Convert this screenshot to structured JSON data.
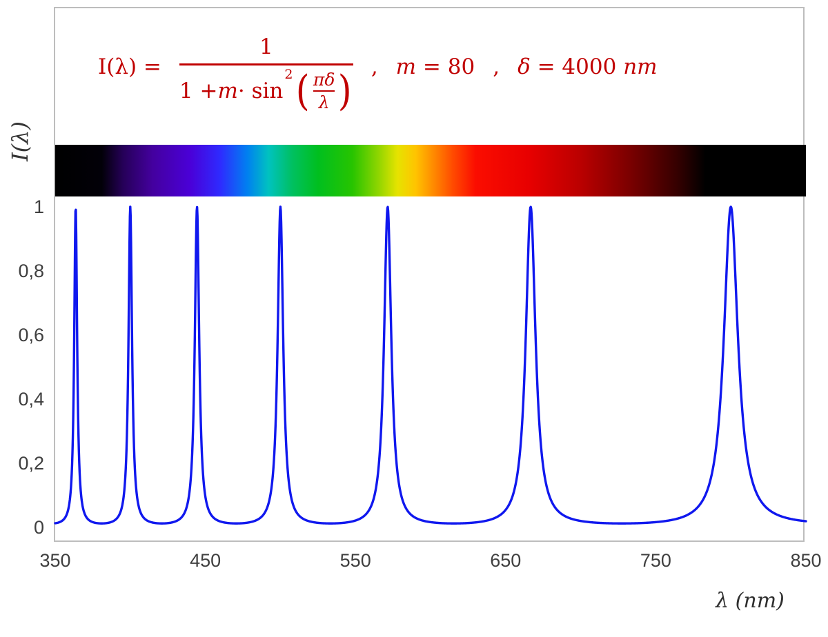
{
  "formula": {
    "color": "#c00000",
    "lhs": "I(λ) =",
    "numerator": "1",
    "den_pre": "1 + ",
    "den_m": "m",
    "den_sin": " · sin",
    "den_exp": "2",
    "paren_open": "(",
    "inner_num": "πδ",
    "inner_den": "λ",
    "paren_close": ")",
    "sep1": ",",
    "m_var": "m",
    "m_rest": " = 80",
    "sep2": ",",
    "delta_var": "δ",
    "delta_rest": " = 4000 ",
    "delta_unit": "nm"
  },
  "axes": {
    "y_title": "I(λ)",
    "x_title": "λ  (nm)",
    "y_ticks": [
      {
        "label": "1",
        "value": 1.0
      },
      {
        "label": "0,8",
        "value": 0.8
      },
      {
        "label": "0,6",
        "value": 0.6
      },
      {
        "label": "0,4",
        "value": 0.4
      },
      {
        "label": "0,2",
        "value": 0.2
      },
      {
        "label": "0",
        "value": 0.0
      }
    ],
    "x_ticks": [
      {
        "label": "350",
        "value": 350
      },
      {
        "label": "450",
        "value": 450
      },
      {
        "label": "550",
        "value": 550
      },
      {
        "label": "650",
        "value": 650
      },
      {
        "label": "750",
        "value": 750
      },
      {
        "label": "850",
        "value": 850
      }
    ]
  },
  "spectrum": {
    "stops": [
      {
        "wl": 350,
        "color": "#000000"
      },
      {
        "wl": 381,
        "color": "#020008"
      },
      {
        "wl": 395,
        "color": "#250057"
      },
      {
        "wl": 415,
        "color": "#44009f"
      },
      {
        "wl": 440,
        "color": "#4a00d8"
      },
      {
        "wl": 460,
        "color": "#2e2bff"
      },
      {
        "wl": 478,
        "color": "#0080f0"
      },
      {
        "wl": 492,
        "color": "#00c2c0"
      },
      {
        "wl": 508,
        "color": "#00c060"
      },
      {
        "wl": 525,
        "color": "#00bf1f"
      },
      {
        "wl": 548,
        "color": "#27c400"
      },
      {
        "wl": 565,
        "color": "#8ed500"
      },
      {
        "wl": 578,
        "color": "#e6e300"
      },
      {
        "wl": 590,
        "color": "#ffc400"
      },
      {
        "wl": 602,
        "color": "#ff8a00"
      },
      {
        "wl": 615,
        "color": "#ff4a00"
      },
      {
        "wl": 630,
        "color": "#fb0d00"
      },
      {
        "wl": 665,
        "color": "#e80000"
      },
      {
        "wl": 700,
        "color": "#ba0000"
      },
      {
        "wl": 735,
        "color": "#760000"
      },
      {
        "wl": 765,
        "color": "#330000"
      },
      {
        "wl": 783,
        "color": "#000000"
      },
      {
        "wl": 850,
        "color": "#000000"
      }
    ]
  },
  "chart_data": {
    "type": "line",
    "title": "",
    "xlabel": "λ (nm)",
    "ylabel": "I(λ)",
    "x_range": [
      350,
      850
    ],
    "ylim": [
      0,
      1
    ],
    "x_ticks": [
      350,
      450,
      550,
      650,
      750,
      850
    ],
    "y_ticks": [
      0,
      0.2,
      0.4,
      0.6,
      0.8,
      1
    ],
    "grid": false,
    "legend": null,
    "series": [
      {
        "name": "I(λ)",
        "color": "#1018ee",
        "function": "I(lambda) = 1 / (1 + m * sin^2(pi * delta / lambda))",
        "params": {
          "m": 80,
          "delta_nm": 4000
        }
      }
    ],
    "peaks_nm": [
      363.6,
      400.0,
      444.4,
      500.0,
      571.4,
      666.7,
      800.0
    ],
    "peak_intensity": 1.0,
    "baseline_intensity": 0.0123
  }
}
